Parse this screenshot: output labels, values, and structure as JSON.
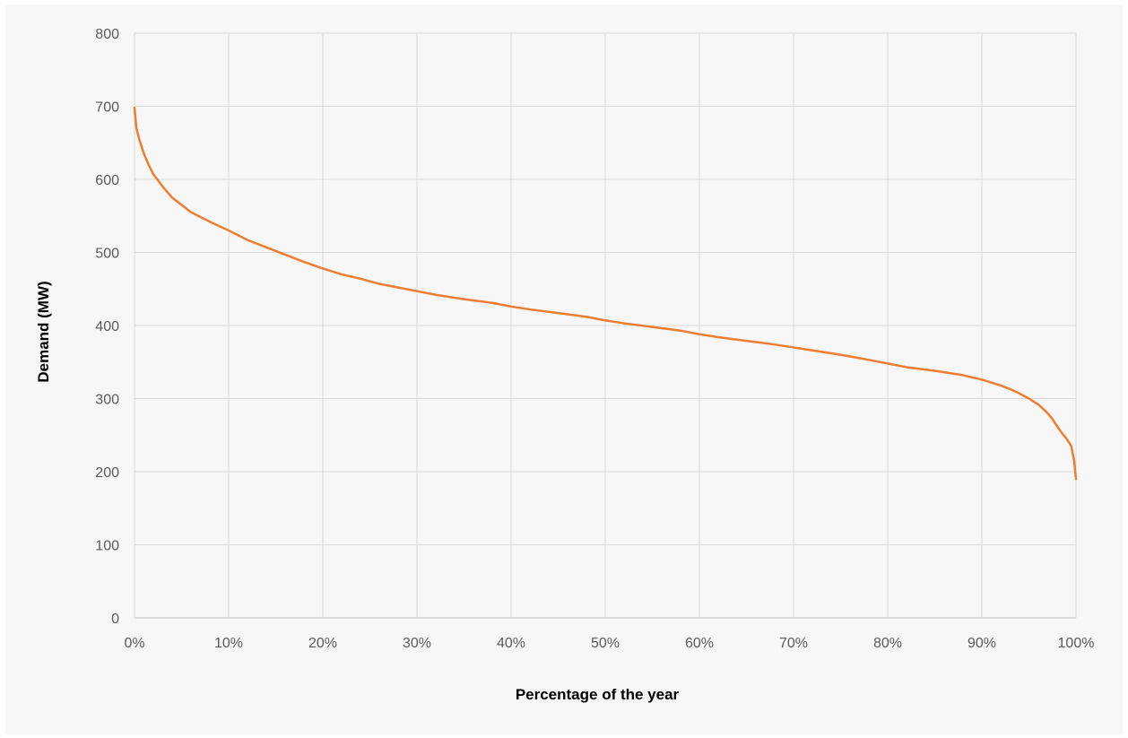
{
  "chart_data": {
    "type": "line",
    "title": "",
    "xlabel": "Percentage of the year",
    "ylabel": "Demand (MW)",
    "xlim": [
      0,
      100
    ],
    "ylim": [
      0,
      800
    ],
    "x_ticks": [
      "0%",
      "10%",
      "20%",
      "30%",
      "40%",
      "50%",
      "60%",
      "70%",
      "80%",
      "90%",
      "100%"
    ],
    "y_ticks": [
      "0",
      "100",
      "200",
      "300",
      "400",
      "500",
      "600",
      "700",
      "800"
    ],
    "x_tick_values": [
      0,
      10,
      20,
      30,
      40,
      50,
      60,
      70,
      80,
      90,
      100
    ],
    "y_tick_values": [
      0,
      100,
      200,
      300,
      400,
      500,
      600,
      700,
      800
    ],
    "grid": true,
    "legend": "none",
    "series": [
      {
        "color": "#ed7d31",
        "x": [
          0,
          0.2,
          0.5,
          1,
          1.5,
          2,
          3,
          4,
          5,
          6,
          8,
          10,
          12,
          14,
          16,
          18,
          20,
          22,
          24,
          26,
          28,
          30,
          32,
          35,
          38,
          40,
          42,
          45,
          48,
          50,
          52,
          55,
          58,
          60,
          62,
          65,
          68,
          70,
          72,
          75,
          78,
          80,
          82,
          85,
          88,
          90,
          91,
          92,
          93,
          94,
          95,
          96,
          97,
          97.5,
          98,
          98.5,
          99,
          99.5,
          99.8,
          100
        ],
        "y": [
          698,
          670,
          655,
          635,
          620,
          607,
          590,
          575,
          565,
          555,
          542,
          530,
          517,
          507,
          497,
          487,
          478,
          470,
          464,
          457,
          452,
          447,
          442,
          436,
          431,
          426,
          422,
          417,
          412,
          407,
          403,
          398,
          393,
          388,
          384,
          379,
          374,
          370,
          366,
          360,
          353,
          348,
          343,
          338,
          332,
          326,
          322,
          318,
          313,
          307,
          300,
          292,
          280,
          272,
          262,
          253,
          245,
          235,
          215,
          190
        ]
      }
    ]
  }
}
